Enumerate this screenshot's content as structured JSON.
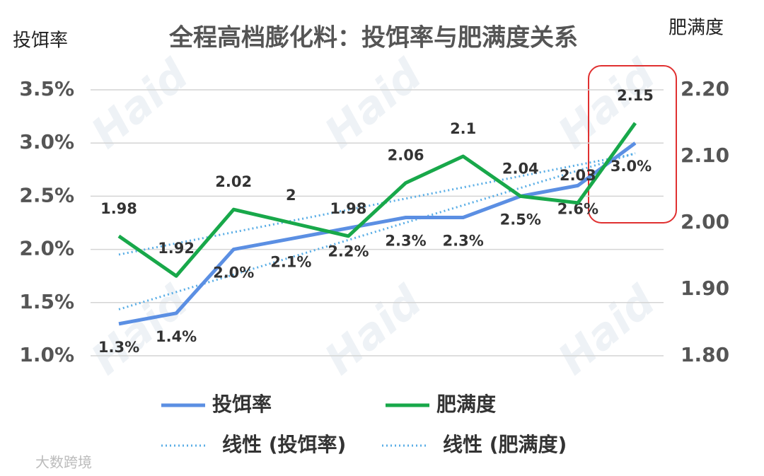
{
  "chart_data": {
    "type": "line",
    "title": "全程高档膨化料：投饵率与肥满度关系",
    "y_label": "投饵率",
    "y2_label": "肥满度",
    "categories": [
      null,
      null,
      null,
      null,
      null,
      null,
      null,
      null,
      null,
      null
    ],
    "series": [
      {
        "name": "投饵率",
        "color": "#5b8fe3",
        "values": [
          1.3,
          1.4,
          2.0,
          2.1,
          2.2,
          2.3,
          2.3,
          2.5,
          2.6,
          3.0
        ],
        "value_labels": [
          "1.3%",
          "1.4%",
          "2.0%",
          "2.1%",
          "2.2%",
          "2.3%",
          "2.3%",
          "2.5%",
          "2.6%",
          "3.0%"
        ]
      },
      {
        "name": "肥满度",
        "color": "#18a84a",
        "axis": "y2",
        "values": [
          1.98,
          1.92,
          2.02,
          2,
          1.98,
          2.06,
          2.1,
          2.04,
          2.03,
          2.15
        ]
      }
    ],
    "trendlines": [
      {
        "name": "线性 (投饵率)",
        "series": 0,
        "color": "#5aaee6"
      },
      {
        "name": "线性 (肥满度)",
        "series": 1,
        "color": "#5aaee6"
      }
    ],
    "ylim": [
      1.0,
      3.5
    ],
    "yticks": [
      {
        "value": 1.0,
        "label": "1.0%"
      },
      {
        "value": 1.5,
        "label": "1.5%"
      },
      {
        "value": 2.0,
        "label": "2.0%"
      },
      {
        "value": 2.5,
        "label": "2.5%"
      },
      {
        "value": 3.0,
        "label": "3.0%"
      },
      {
        "value": 3.5,
        "label": "3.5%"
      }
    ],
    "y2lim": [
      1.8,
      2.2
    ],
    "y2ticks": [
      {
        "value": 1.8,
        "label": "1.80"
      },
      {
        "value": 1.9,
        "label": "1.90"
      },
      {
        "value": 2.0,
        "label": "2.00"
      },
      {
        "value": 2.1,
        "label": "2.10"
      },
      {
        "value": 2.2,
        "label": "2.20"
      }
    ],
    "grid": true,
    "watermark": "Haid",
    "source_mark": "大数跨境"
  }
}
